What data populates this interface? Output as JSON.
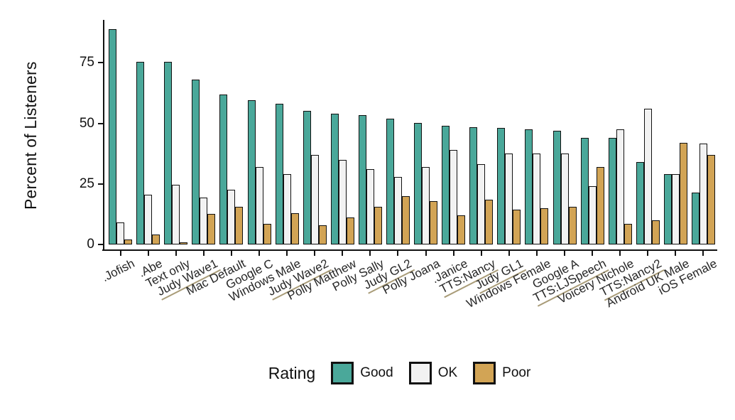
{
  "chart_data": {
    "type": "bar",
    "title": "",
    "xlabel": "",
    "ylabel": "Percent of Listeners",
    "ylim": [
      0,
      92
    ],
    "yticks": [
      0,
      25,
      50,
      75
    ],
    "grid": false,
    "legend_position": "bottom",
    "legend_title": "Rating",
    "categories": [
      ".Jofish",
      ".Abe",
      "Text only",
      "Judy Wave1",
      "Mac Default",
      "Google C",
      "Windows Male",
      "Judy Wave2",
      "Polly Matthew",
      "Polly Sally",
      "Judy GL2",
      "Polly Joana",
      ".Janice",
      "TTS:Nancy",
      "Judy GL1",
      "Windows Female",
      "Google A",
      "TTS:LJSpeech",
      "Voicery Nichole",
      "TTS:Nancy2",
      "Android UK Male",
      "iOS Female"
    ],
    "underlined_categories": [
      "Judy Wave1",
      "Judy Wave2",
      "Judy GL2",
      "TTS:Nancy",
      "Judy GL1",
      "TTS:LJSpeech",
      "TTS:Nancy2"
    ],
    "series": [
      {
        "name": "Good",
        "color": "#4aa89a",
        "values": [
          89,
          75.5,
          75.5,
          68,
          62,
          59.5,
          58,
          55,
          54,
          53.5,
          52,
          50,
          49,
          48.5,
          48,
          47.5,
          47,
          44,
          44,
          34,
          29,
          21.5
        ]
      },
      {
        "name": "OK",
        "color": "#f2f2f2",
        "values": [
          9,
          20.5,
          24.5,
          19.5,
          22.5,
          32,
          29,
          37,
          35,
          31,
          28,
          32,
          39,
          33,
          37.5,
          37.5,
          37.5,
          24,
          47.5,
          56,
          29,
          41.5
        ]
      },
      {
        "name": "Poor",
        "color": "#d2a455",
        "values": [
          2,
          4,
          0,
          12.5,
          15.5,
          8.5,
          13,
          8,
          11,
          15.5,
          20,
          18,
          12,
          18.5,
          14.5,
          15,
          15.5,
          32,
          8.5,
          10,
          42,
          37
        ]
      }
    ]
  },
  "colors": {
    "bar_stroke": "#111111",
    "axis": "#111111",
    "underline": "#a99c78",
    "background": "#ffffff"
  }
}
